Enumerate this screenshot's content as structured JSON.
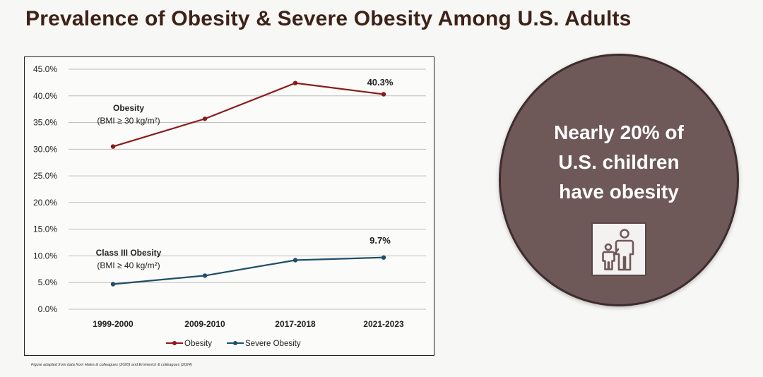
{
  "title": "Prevalence of Obesity & Severe Obesity Among U.S. Adults",
  "callout": {
    "line1": "Nearly 20% of",
    "line2": "U.S. children",
    "line3": "have obesity",
    "icon": "parent-child-icon"
  },
  "footnote": "Figure adapted from data from Hales & colleagues (2020) and Emmerich & colleagues (2024)",
  "colors": {
    "obesity": "#8b1a1a",
    "severe": "#1f4e66",
    "circle": "#6f5858"
  },
  "chart_data": {
    "type": "line",
    "categories": [
      "1999-2000",
      "2009-2010",
      "2017-2018",
      "2021-2023"
    ],
    "ylim": [
      0,
      45
    ],
    "yticks": [
      {
        "value": 0,
        "label": "0.0%"
      },
      {
        "value": 5,
        "label": "5.0%"
      },
      {
        "value": 10,
        "label": "10.0%"
      },
      {
        "value": 15,
        "label": "15.0%"
      },
      {
        "value": 20,
        "label": "20.0%"
      },
      {
        "value": 25,
        "label": "25.0%"
      },
      {
        "value": 30,
        "label": "30.0%"
      },
      {
        "value": 35,
        "label": "35.0%"
      },
      {
        "value": 40,
        "label": "40.0%"
      },
      {
        "value": 45,
        "label": "45.0%"
      }
    ],
    "grid": true,
    "legend_position": "bottom",
    "series": [
      {
        "name": "Obesity",
        "values": [
          30.5,
          35.7,
          42.4,
          40.3
        ],
        "color": "#8b1a1a"
      },
      {
        "name": "Severe Obesity",
        "values": [
          4.7,
          6.3,
          9.2,
          9.7
        ],
        "color": "#1f4e66"
      }
    ],
    "annotations": {
      "obesity_label": "Obesity",
      "obesity_bmi": "(BMI ≥ 30 kg/m²)",
      "obesity_last": "40.3%",
      "severe_label": "Class III Obesity",
      "severe_bmi": "(BMI ≥ 40 kg/m²)",
      "severe_last": "9.7%"
    }
  }
}
